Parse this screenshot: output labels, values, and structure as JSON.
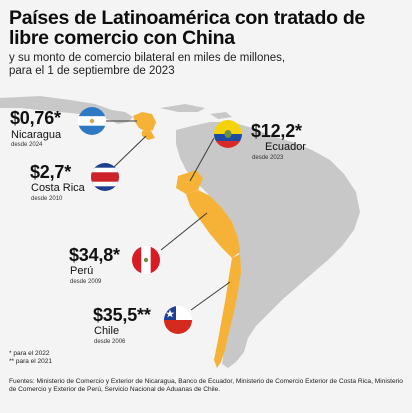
{
  "title": "Países de Latinoamérica con tratado de libre comercio con China",
  "subtitle_line1": "y su monto de comercio bilateral en miles de millones,",
  "subtitle_line2": "para el 1 de septiembre de 2023",
  "colors": {
    "highlight": "#f6b236",
    "land": "#c8c8c8",
    "background": "#f4f4f4",
    "leader": "#3a3a3a"
  },
  "countries": [
    {
      "key": "nicaragua",
      "value": "$0,76*",
      "name": "Nicaragua",
      "since": "desde 2024"
    },
    {
      "key": "costa-rica",
      "value": "$2,7*",
      "name": "Costa Rica",
      "since": "desde 2010"
    },
    {
      "key": "ecuador",
      "value": "$12,2*",
      "name": "Ecuador",
      "since": "desde 2023"
    },
    {
      "key": "peru",
      "value": "$34,8*",
      "name": "Perú",
      "since": "desde 2009"
    },
    {
      "key": "chile",
      "value": "$35,5**",
      "name": "Chile",
      "since": "desde 2006"
    }
  ],
  "footnotes": [
    "* para el 2022",
    "** para el 2021"
  ],
  "sources": "Fuentes: Ministerio de Comercio y Exterior de Nicaragua, Banco de Ecuador, Ministerio de Comercio Exterior de Costa Rica, Ministerio de Comercio y Exterior de Perú, Servicio Nacional de Aduanas de Chile."
}
